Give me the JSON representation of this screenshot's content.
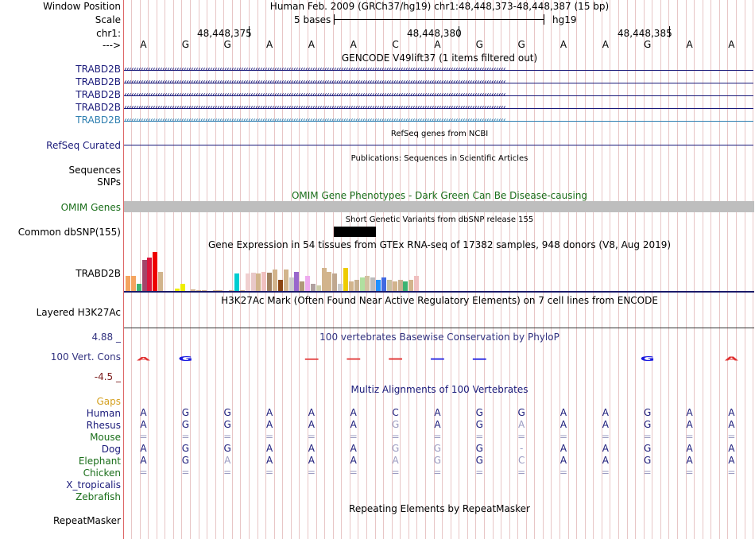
{
  "header": {
    "window_position_label": "Window Position",
    "scale_label": "Scale",
    "chrom_label": "chr1:",
    "strand_label": "--->",
    "position_title": "Human Feb. 2009 (GRCh37/hg19)   chr1:48,448,373-48,448,387 (15 bp)",
    "scale_text": "5 bases",
    "assembly": "hg19",
    "coord_ticks": [
      "48,448,375",
      "48,448,380",
      "48,448,385"
    ]
  },
  "bases": [
    "A",
    "G",
    "G",
    "A",
    "A",
    "A",
    "C",
    "A",
    "G",
    "G",
    "A",
    "A",
    "G",
    "A",
    "A"
  ],
  "gencode": {
    "title": "GENCODE V49lift37 (1 items filtered out)",
    "transcripts": [
      "TRABD2B",
      "TRABD2B",
      "TRABD2B",
      "TRABD2B",
      "TRABD2B"
    ],
    "colors": [
      "#1a1a7a",
      "#1a1a7a",
      "#1a1a7a",
      "#1a1a7a",
      "#2e7fb0"
    ]
  },
  "refseq": {
    "title": "RefSeq genes from NCBI",
    "label": "RefSeq Curated"
  },
  "publications": {
    "title": "Publications: Sequences in Scientific Articles",
    "labels": [
      "Sequences",
      "SNPs"
    ]
  },
  "omim": {
    "title": "OMIM Gene Phenotypes - Dark Green Can Be Disease-causing",
    "label": "OMIM Genes"
  },
  "dbsnp": {
    "title": "Short Genetic Variants from dbSNP release 155",
    "label": "Common dbSNP(155)"
  },
  "gtex": {
    "title": "Gene Expression in 54 tissues from GTEx RNA-seq of 17382 samples, 948 donors (V8, Aug 2019)",
    "label": "TRABD2B",
    "values": [
      0.4,
      0.4,
      0.2,
      0.8,
      0.85,
      1.0,
      0.5,
      0,
      0,
      0.08,
      0.2,
      0,
      0.05,
      0.03,
      0.03,
      0.02,
      0.03,
      0.04,
      0.02,
      0.04,
      0.45,
      0.03,
      0.45,
      0.48,
      0.45,
      0.5,
      0.48,
      0.55,
      0.3,
      0.55,
      0.35,
      0.5,
      0.25,
      0.4,
      0.2,
      0.15,
      0.6,
      0.5,
      0.45,
      0.2,
      0.6,
      0.25,
      0.3,
      0.35,
      0.4,
      0.35,
      0.3,
      0.35,
      0.3,
      0.25,
      0.3,
      0.25,
      0.3,
      0.4
    ],
    "colors": [
      "#f4a460",
      "#f4a460",
      "#3cb371",
      "#a3446a",
      "#dc143c",
      "#ee0000",
      "#d2b48c",
      "#d2b48c",
      "#d2b48c",
      "#eeee00",
      "#eeee00",
      "#d2b48c",
      "#d2b48c",
      "#d2b48c",
      "#d2b48c",
      "#d2b48c",
      "#d2b48c",
      "#d2b48c",
      "#d2b48c",
      "#d2b48c",
      "#00ced1",
      "#d2b48c",
      "#f0d0d0",
      "#e8c8c8",
      "#d2b48c",
      "#f0c0c0",
      "#a08060",
      "#d2b48c",
      "#8b4513",
      "#d2b48c",
      "#cccccc",
      "#9966cc",
      "#b09878",
      "#eeaaee",
      "#b0a0a0",
      "#ccccaa",
      "#d2b48c",
      "#d2b48c",
      "#c0a890",
      "#cccccc",
      "#eecc00",
      "#d2b48c",
      "#c8b090",
      "#b0e0a0",
      "#d2c0a0",
      "#bbbbbb",
      "#1e90ff",
      "#4169e1",
      "#c8c0a0",
      "#d2b48c",
      "#c8b090",
      "#3cb371",
      "#d2b48c",
      "#f0c0c0"
    ]
  },
  "h3k27ac": {
    "title": "H3K27Ac Mark (Often Found Near Active Regulatory Elements) on 7 cell lines from ENCODE",
    "label": "Layered H3K27Ac"
  },
  "phylop": {
    "title": "100 vertebrates Basewise Conservation by PhyloP",
    "label": "100 Vert. Cons",
    "max": "4.88 _",
    "min": "-4.5 _",
    "scores": [
      0.5,
      0.9,
      0.0,
      0.0,
      0.2,
      0.3,
      0.35,
      0.3,
      0.25,
      0.0,
      0.0,
      0.0,
      0.9,
      0.0,
      0.6
    ],
    "colors": [
      "#e03030",
      "#1a1adf",
      "#999999",
      "#999999",
      "#e03030",
      "#e03030",
      "#e03030",
      "#1a1adf",
      "#1a1adf",
      "#999999",
      "#999999",
      "#999999",
      "#1a1adf",
      "#999999",
      "#e03030"
    ]
  },
  "multiz": {
    "title": "Multiz Alignments of 100 Vertebrates",
    "gaps_label": "Gaps",
    "species": [
      {
        "name": "Human",
        "color": "#1a1a7a",
        "bases": [
          "A",
          "G",
          "G",
          "A",
          "A",
          "A",
          "C",
          "A",
          "G",
          "G",
          "A",
          "A",
          "G",
          "A",
          "A"
        ],
        "dim": [
          0,
          0,
          0,
          0,
          0,
          0,
          0,
          0,
          0,
          0,
          0,
          0,
          0,
          0,
          0
        ]
      },
      {
        "name": "Rhesus",
        "color": "#1a1a7a",
        "bases": [
          "A",
          "G",
          "G",
          "A",
          "A",
          "A",
          "G",
          "A",
          "G",
          "A",
          "A",
          "A",
          "G",
          "A",
          "A"
        ],
        "dim": [
          0,
          0,
          0,
          0,
          0,
          0,
          1,
          0,
          0,
          1,
          0,
          0,
          0,
          0,
          0
        ]
      },
      {
        "name": "Mouse",
        "color": "#1a6e1a",
        "bases": [
          "=",
          "=",
          "=",
          "=",
          "=",
          "=",
          "=",
          "=",
          "=",
          "=",
          "=",
          "=",
          "=",
          "=",
          "="
        ],
        "dim": [
          1,
          1,
          1,
          1,
          1,
          1,
          1,
          1,
          1,
          1,
          1,
          1,
          1,
          1,
          1
        ]
      },
      {
        "name": "Dog",
        "color": "#1a1a7a",
        "bases": [
          "A",
          "G",
          "G",
          "A",
          "A",
          "A",
          "G",
          "G",
          "G",
          "-",
          "A",
          "A",
          "G",
          "A",
          "A"
        ],
        "dim": [
          0,
          0,
          0,
          0,
          0,
          0,
          1,
          1,
          0,
          1,
          0,
          0,
          0,
          0,
          0
        ]
      },
      {
        "name": "Elephant",
        "color": "#1a6e1a",
        "bases": [
          "A",
          "G",
          "A",
          "A",
          "A",
          "A",
          "A",
          "G",
          "G",
          "C",
          "A",
          "A",
          "G",
          "A",
          "A"
        ],
        "dim": [
          0,
          0,
          1,
          0,
          0,
          0,
          1,
          1,
          0,
          1,
          0,
          0,
          0,
          0,
          0
        ]
      },
      {
        "name": "Chicken",
        "color": "#1a6e1a",
        "bases": [
          "=",
          "=",
          "=",
          "=",
          "=",
          "=",
          "=",
          "=",
          "=",
          "=",
          "=",
          "=",
          "=",
          "=",
          "="
        ],
        "dim": [
          1,
          1,
          1,
          1,
          1,
          1,
          1,
          1,
          1,
          1,
          1,
          1,
          1,
          1,
          1
        ]
      },
      {
        "name": "X_tropicalis",
        "color": "#1a1a7a",
        "bases": [],
        "dim": []
      },
      {
        "name": "Zebrafish",
        "color": "#1a6e1a",
        "bases": [],
        "dim": []
      }
    ]
  },
  "repeatmasker": {
    "title": "Repeating Elements by RepeatMasker",
    "label": "RepeatMasker"
  }
}
